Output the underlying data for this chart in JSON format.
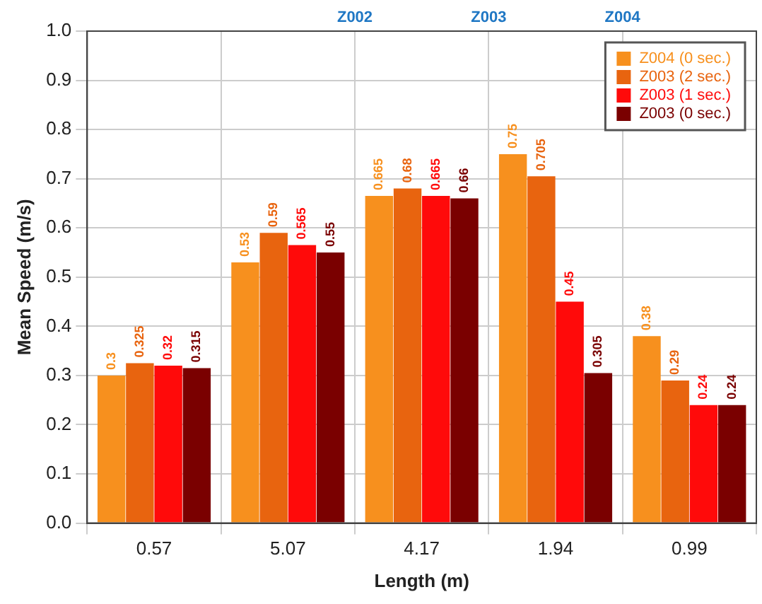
{
  "chart_data": {
    "type": "bar",
    "xlabel": "Length (m)",
    "ylabel": "Mean Speed (m/s)",
    "categories": [
      "0.57",
      "5.07",
      "4.17",
      "1.94",
      "0.99"
    ],
    "series": [
      {
        "name": "Z004 (0 sec.)",
        "color": "#f7901e",
        "values": [
          0.3,
          0.53,
          0.665,
          0.75,
          0.38
        ]
      },
      {
        "name": "Z003 (2 sec.)",
        "color": "#e8640f",
        "values": [
          0.325,
          0.59,
          0.68,
          0.705,
          0.29
        ]
      },
      {
        "name": "Z003 (1 sec.)",
        "color": "#ff0a0a",
        "values": [
          0.32,
          0.565,
          0.665,
          0.45,
          0.24
        ]
      },
      {
        "name": "Z003 (0 sec.)",
        "color": "#7a0000",
        "values": [
          0.315,
          0.55,
          0.66,
          0.305,
          0.24
        ]
      }
    ],
    "ylim": [
      0,
      1
    ],
    "yticks": [
      {
        "value": 0,
        "label": "0.0"
      },
      0.1,
      0.2,
      0.3,
      0.4,
      0.5,
      0.6,
      0.7,
      0.8,
      0.9,
      {
        "value": 1,
        "label": "1.0"
      }
    ],
    "annotations": [
      "Z002",
      "Z003",
      "Z004"
    ],
    "grid": true,
    "legend": "top right",
    "data_labels": true
  }
}
